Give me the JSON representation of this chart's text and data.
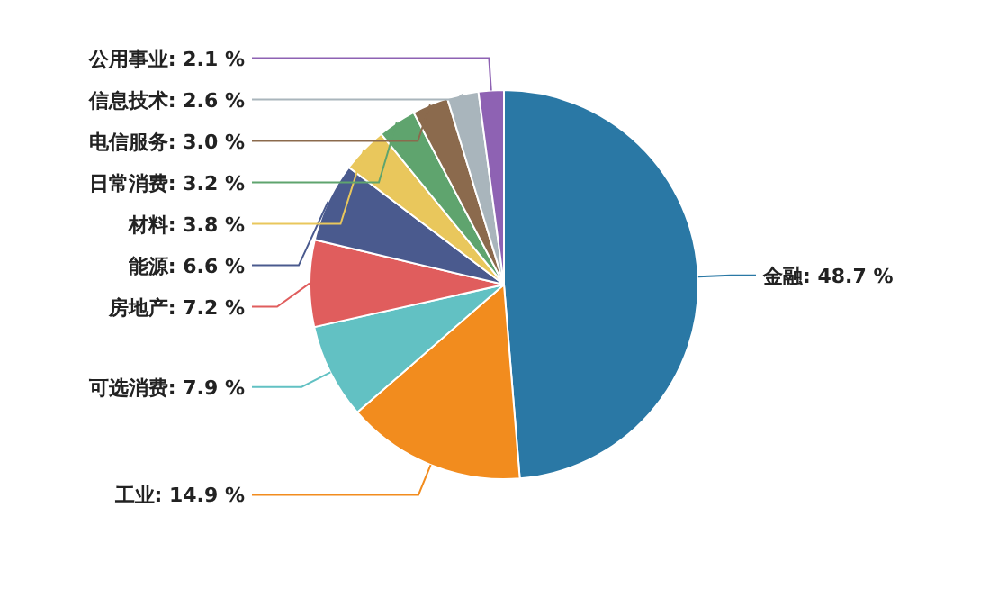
{
  "chart_data": {
    "type": "pie",
    "categories": [
      "金融",
      "工业",
      "可选消费",
      "房地产",
      "能源",
      "材料",
      "日常消费",
      "电信服务",
      "信息技术",
      "公用事业"
    ],
    "values": [
      48.7,
      14.9,
      7.9,
      7.2,
      6.6,
      3.8,
      3.2,
      3.0,
      2.6,
      2.1
    ],
    "value_labels": [
      "48.7 %",
      "14.9 %",
      "7.9 %",
      "7.2 %",
      "6.6 %",
      "3.8 %",
      "3.2 %",
      "3.0 %",
      "2.6 %",
      "2.1 %"
    ],
    "colors": [
      "#2a78a5",
      "#f28c1e",
      "#62c1c3",
      "#e05d5d",
      "#4a5a8e",
      "#e9c75c",
      "#5fa46e",
      "#8b6a4d",
      "#a9b5bc",
      "#8e62b3"
    ]
  }
}
